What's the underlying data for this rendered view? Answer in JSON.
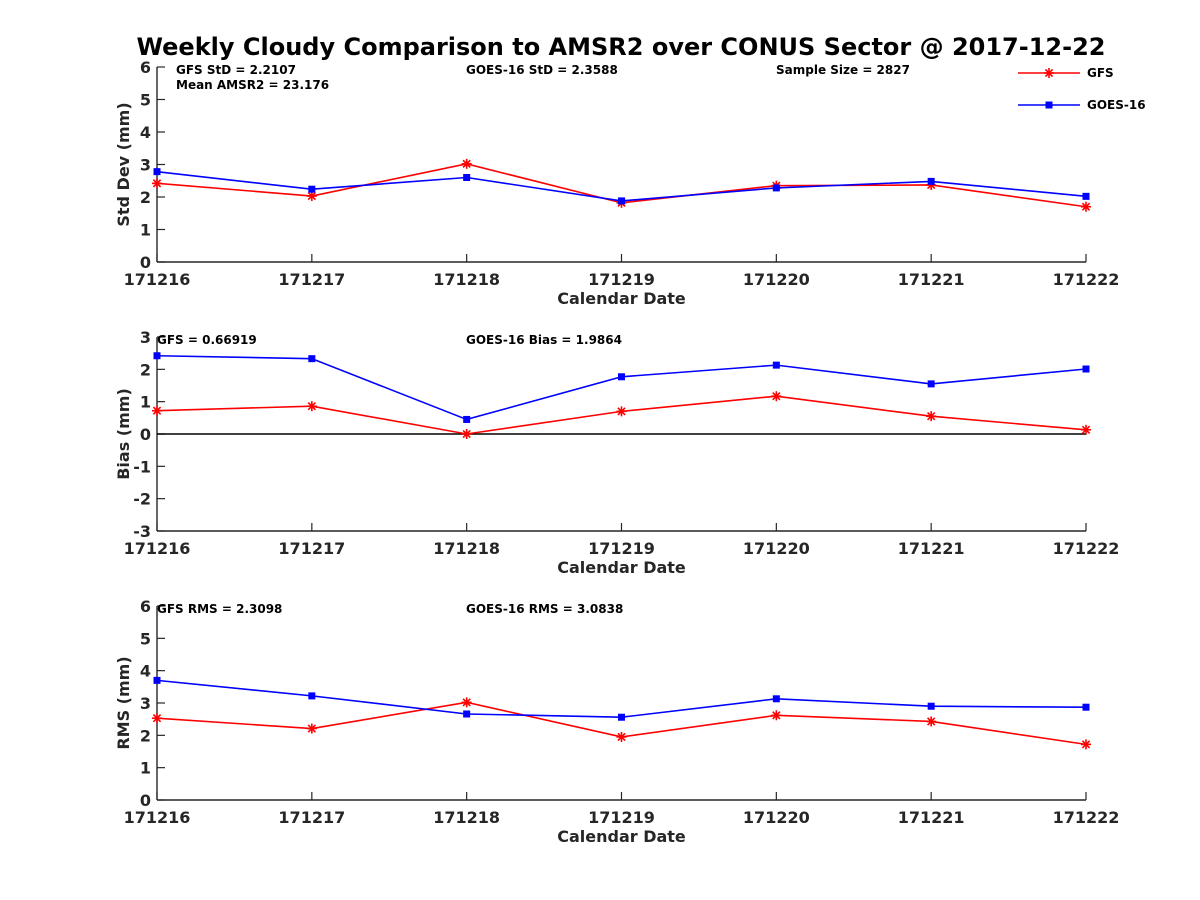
{
  "title": "Weekly Cloudy Comparison to AMSR2 over CONUS Sector @ 2017-12-22",
  "legend": {
    "entries": [
      {
        "name": "GFS",
        "color": "#ff0000",
        "marker": "asterisk"
      },
      {
        "name": "GOES-16",
        "color": "#0000ff",
        "marker": "square"
      }
    ]
  },
  "colors": {
    "gfs": "#ff0000",
    "goes": "#0000ff",
    "axis": "#262626",
    "zero_line": "#000000"
  },
  "chart_data": [
    {
      "type": "line",
      "title": "Weekly Cloudy Comparison to AMSR2 over CONUS Sector @ 2017-12-22",
      "categories": [
        "171216",
        "171217",
        "171218",
        "171219",
        "171220",
        "171221",
        "171222"
      ],
      "xlabel": "Calendar Date",
      "ylabel": "Std Dev (mm)",
      "ylim": [
        0,
        6
      ],
      "yticks": [
        "0",
        "1",
        "2",
        "3",
        "4",
        "5",
        "6"
      ],
      "series": [
        {
          "name": "GFS",
          "values": [
            2.42,
            2.03,
            3.02,
            1.82,
            2.35,
            2.37,
            1.7
          ]
        },
        {
          "name": "GOES-16",
          "values": [
            2.78,
            2.24,
            2.6,
            1.88,
            2.28,
            2.48,
            2.02
          ]
        }
      ],
      "annotations": [
        "GFS StD = 2.2107",
        "Mean AMSR2 = 23.176",
        "GOES-16 StD = 2.3588",
        "Sample Size = 2827"
      ]
    },
    {
      "type": "line",
      "categories": [
        "171216",
        "171217",
        "171218",
        "171219",
        "171220",
        "171221",
        "171222"
      ],
      "xlabel": "Calendar Date",
      "ylabel": "Bias (mm)",
      "ylim": [
        -3,
        3
      ],
      "yticks": [
        "-3",
        "-2",
        "-1",
        "0",
        "1",
        "2",
        "3"
      ],
      "zero_line": true,
      "series": [
        {
          "name": "GFS",
          "values": [
            0.72,
            0.86,
            0.0,
            0.7,
            1.17,
            0.55,
            0.13
          ]
        },
        {
          "name": "GOES-16",
          "values": [
            2.42,
            2.33,
            0.45,
            1.77,
            2.13,
            1.55,
            2.01
          ]
        }
      ],
      "annotations": [
        "GFS = 0.66919",
        "GOES-16 Bias  = 1.9864"
      ]
    },
    {
      "type": "line",
      "categories": [
        "171216",
        "171217",
        "171218",
        "171219",
        "171220",
        "171221",
        "171222"
      ],
      "xlabel": "Calendar Date",
      "ylabel": "RMS (mm)",
      "ylim": [
        0,
        6
      ],
      "yticks": [
        "0",
        "1",
        "2",
        "3",
        "4",
        "5",
        "6"
      ],
      "series": [
        {
          "name": "GFS",
          "values": [
            2.53,
            2.21,
            3.02,
            1.95,
            2.62,
            2.43,
            1.72
          ]
        },
        {
          "name": "GOES-16",
          "values": [
            3.7,
            3.22,
            2.66,
            2.56,
            3.13,
            2.9,
            2.87
          ]
        }
      ],
      "annotations": [
        "GFS RMS = 2.3098",
        "GOES-16 RMS = 3.0838"
      ]
    }
  ]
}
